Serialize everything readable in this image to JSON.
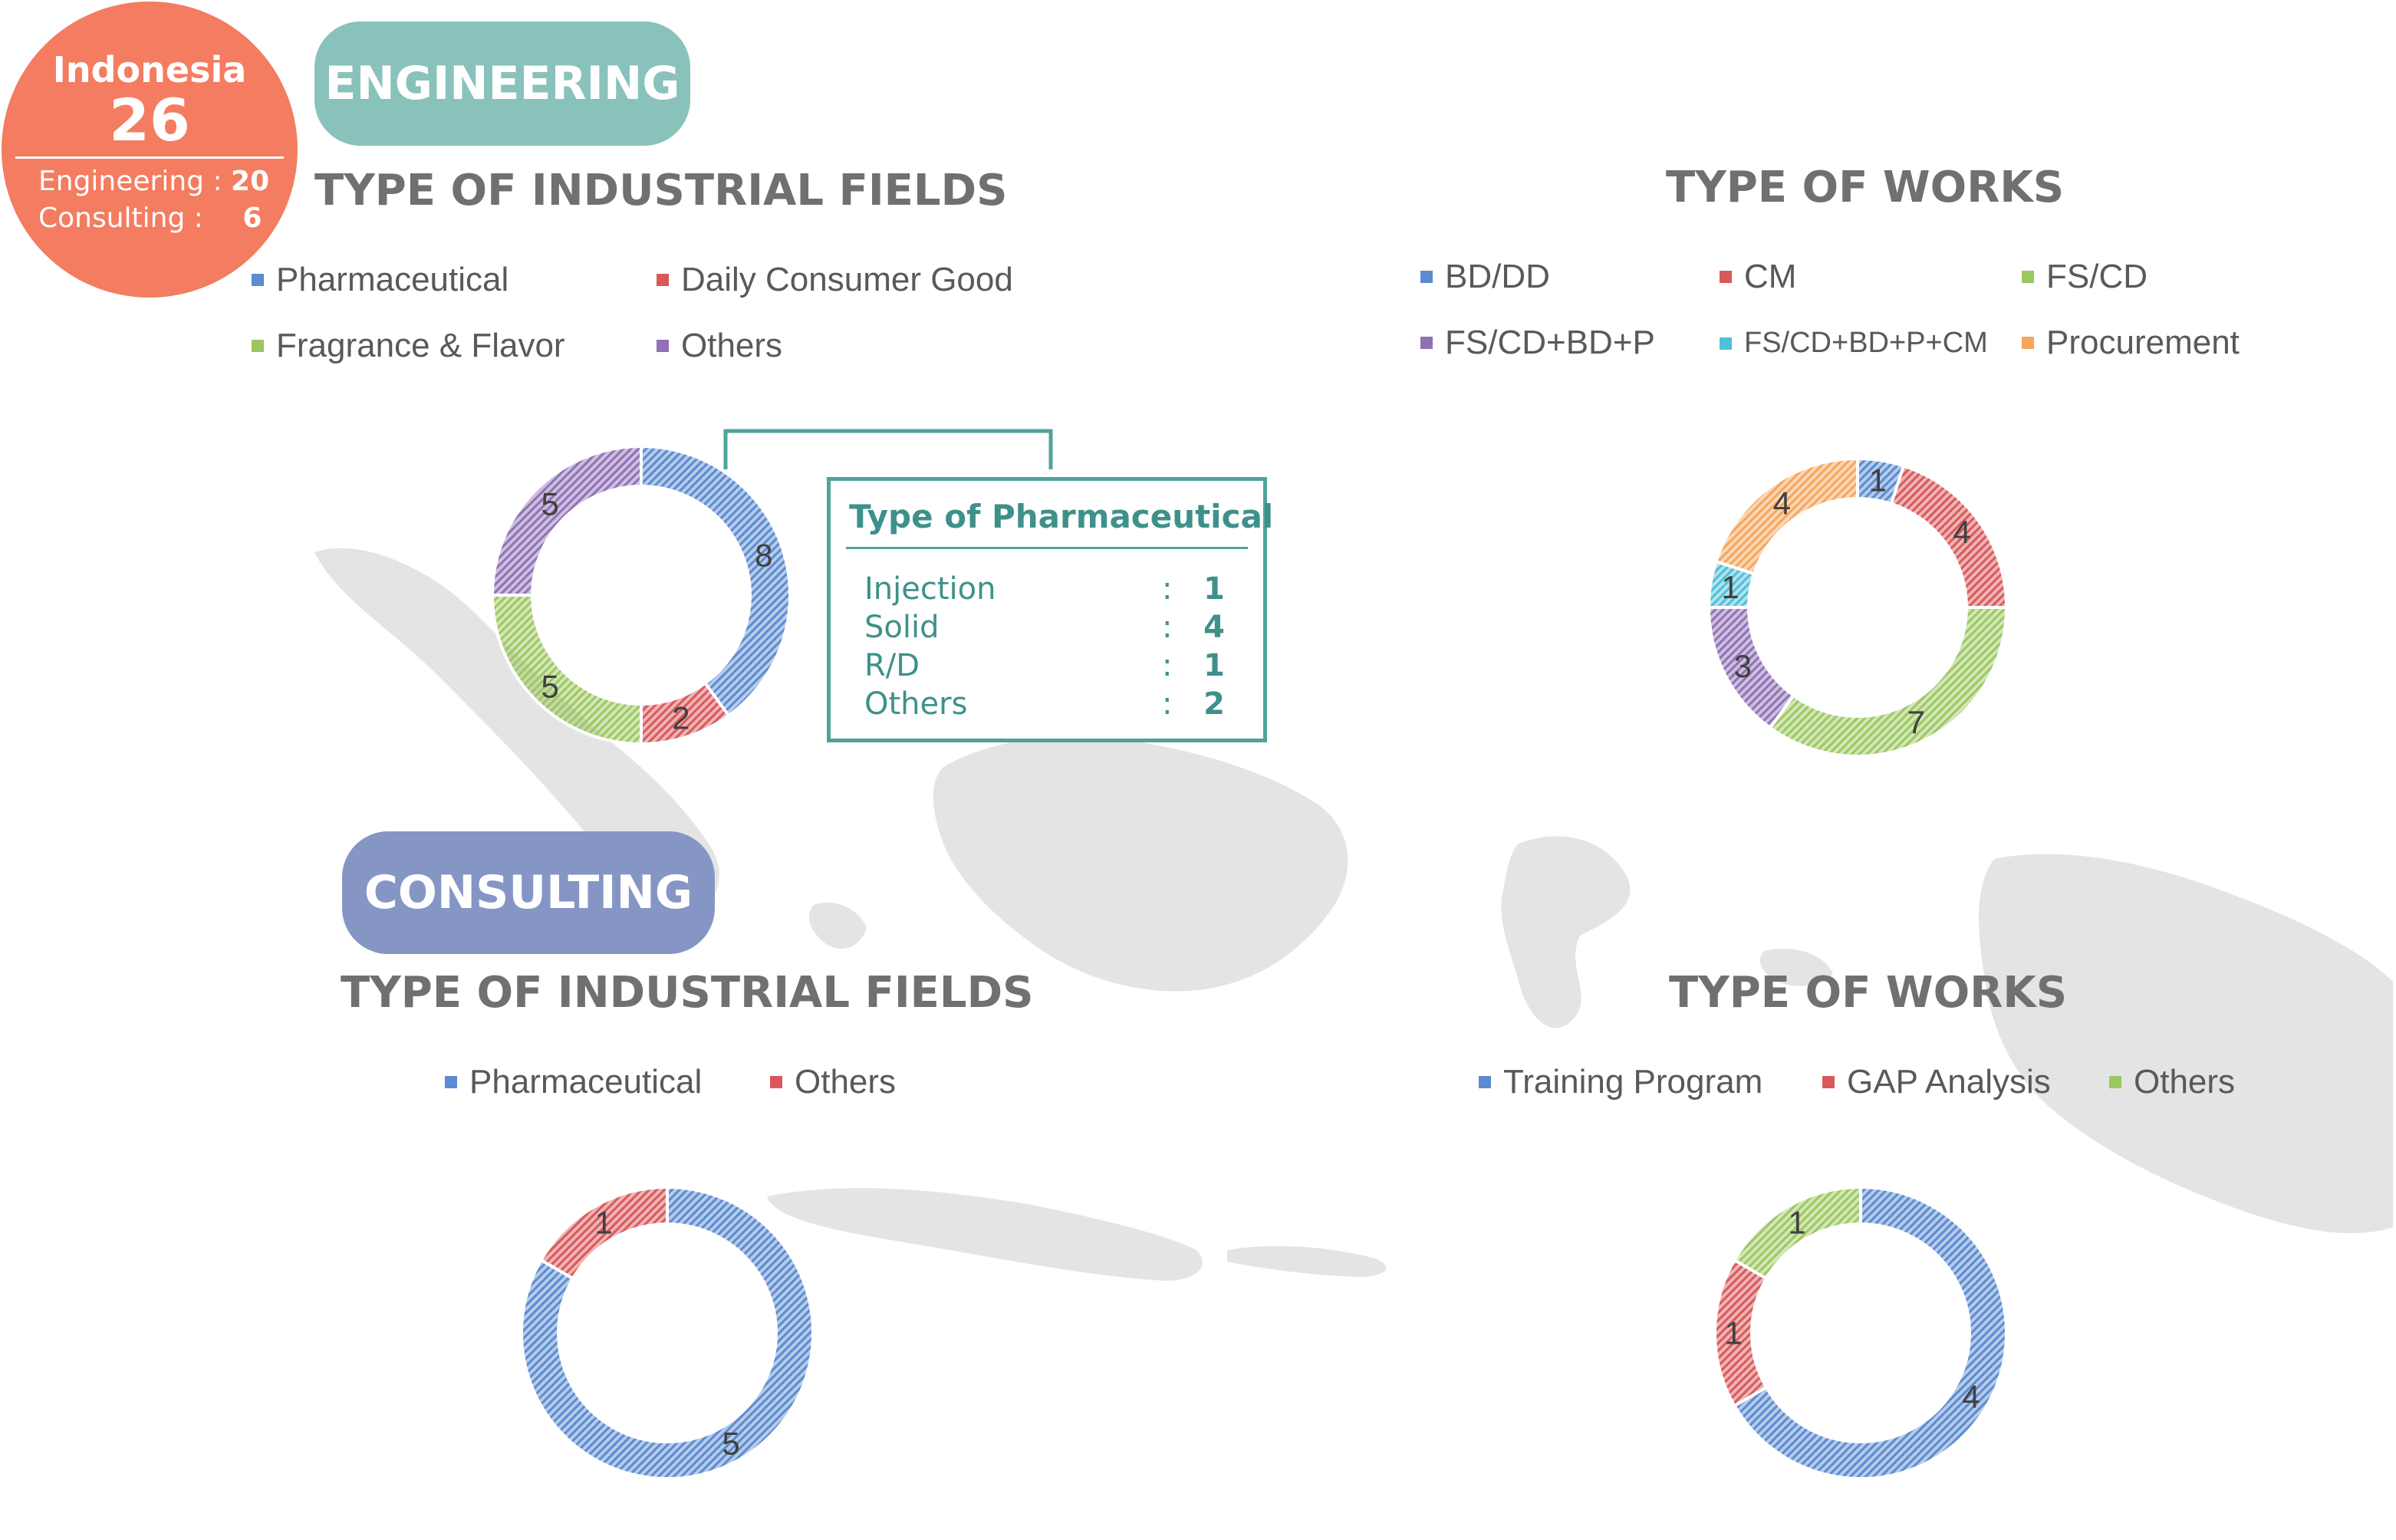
{
  "badge": {
    "country": "Indonesia",
    "total": "26",
    "engineering_label": "Engineering :",
    "engineering_value": "20",
    "consulting_label": "Consulting :",
    "consulting_value": "6",
    "color": "#f47c60"
  },
  "sections": {
    "engineering": {
      "label": "ENGINEERING",
      "color": "#88c2bb"
    },
    "consulting": {
      "label": "CONSULTING",
      "color": "#8595c4"
    }
  },
  "callout": {
    "title": "Type of Pharmaceutical",
    "rows": [
      {
        "label": "Injection",
        "colon": ":",
        "value": "1"
      },
      {
        "label": "Solid",
        "colon": ":",
        "value": "4"
      },
      {
        "label": "R/D",
        "colon": ":",
        "value": "1"
      },
      {
        "label": "Others",
        "colon": ":",
        "value": "2"
      }
    ]
  },
  "chart_data": [
    {
      "type": "pie",
      "title": "TYPE OF INDUSTRIAL FIELDS",
      "section": "ENGINEERING",
      "style": "donut",
      "categories": [
        "Pharmaceutical",
        "Daily Consumer Good",
        "Fragrance & Flavor",
        "Others"
      ],
      "values": [
        8,
        2,
        5,
        5
      ],
      "colors": [
        "#5b8bd0",
        "#d9585a",
        "#9cc760",
        "#9071b6"
      ],
      "legend_placement": "top"
    },
    {
      "type": "pie",
      "title": "TYPE OF WORKS",
      "section": "ENGINEERING",
      "style": "donut",
      "categories": [
        "BD/DD",
        "CM",
        "FS/CD",
        "FS/CD+BD+P",
        "FS/CD+BD+P+CM",
        "Procurement"
      ],
      "values": [
        1,
        4,
        7,
        3,
        1,
        4
      ],
      "colors": [
        "#5b8bd0",
        "#d9585a",
        "#9cc760",
        "#9071b6",
        "#4fc0d9",
        "#f6a55b"
      ],
      "legend_placement": "top"
    },
    {
      "type": "pie",
      "title": "TYPE OF INDUSTRIAL FIELDS",
      "section": "CONSULTING",
      "style": "donut",
      "categories": [
        "Pharmaceutical",
        "Others"
      ],
      "values": [
        5,
        1
      ],
      "colors": [
        "#5b8bd0",
        "#d9585a"
      ],
      "legend_placement": "top"
    },
    {
      "type": "pie",
      "title": "TYPE OF WORKS",
      "section": "CONSULTING",
      "style": "donut",
      "categories": [
        "Training Program",
        "GAP Analysis",
        "Others"
      ],
      "values": [
        4,
        1,
        1
      ],
      "colors": [
        "#5b8bd0",
        "#d9585a",
        "#9cc760"
      ],
      "legend_placement": "top"
    }
  ]
}
